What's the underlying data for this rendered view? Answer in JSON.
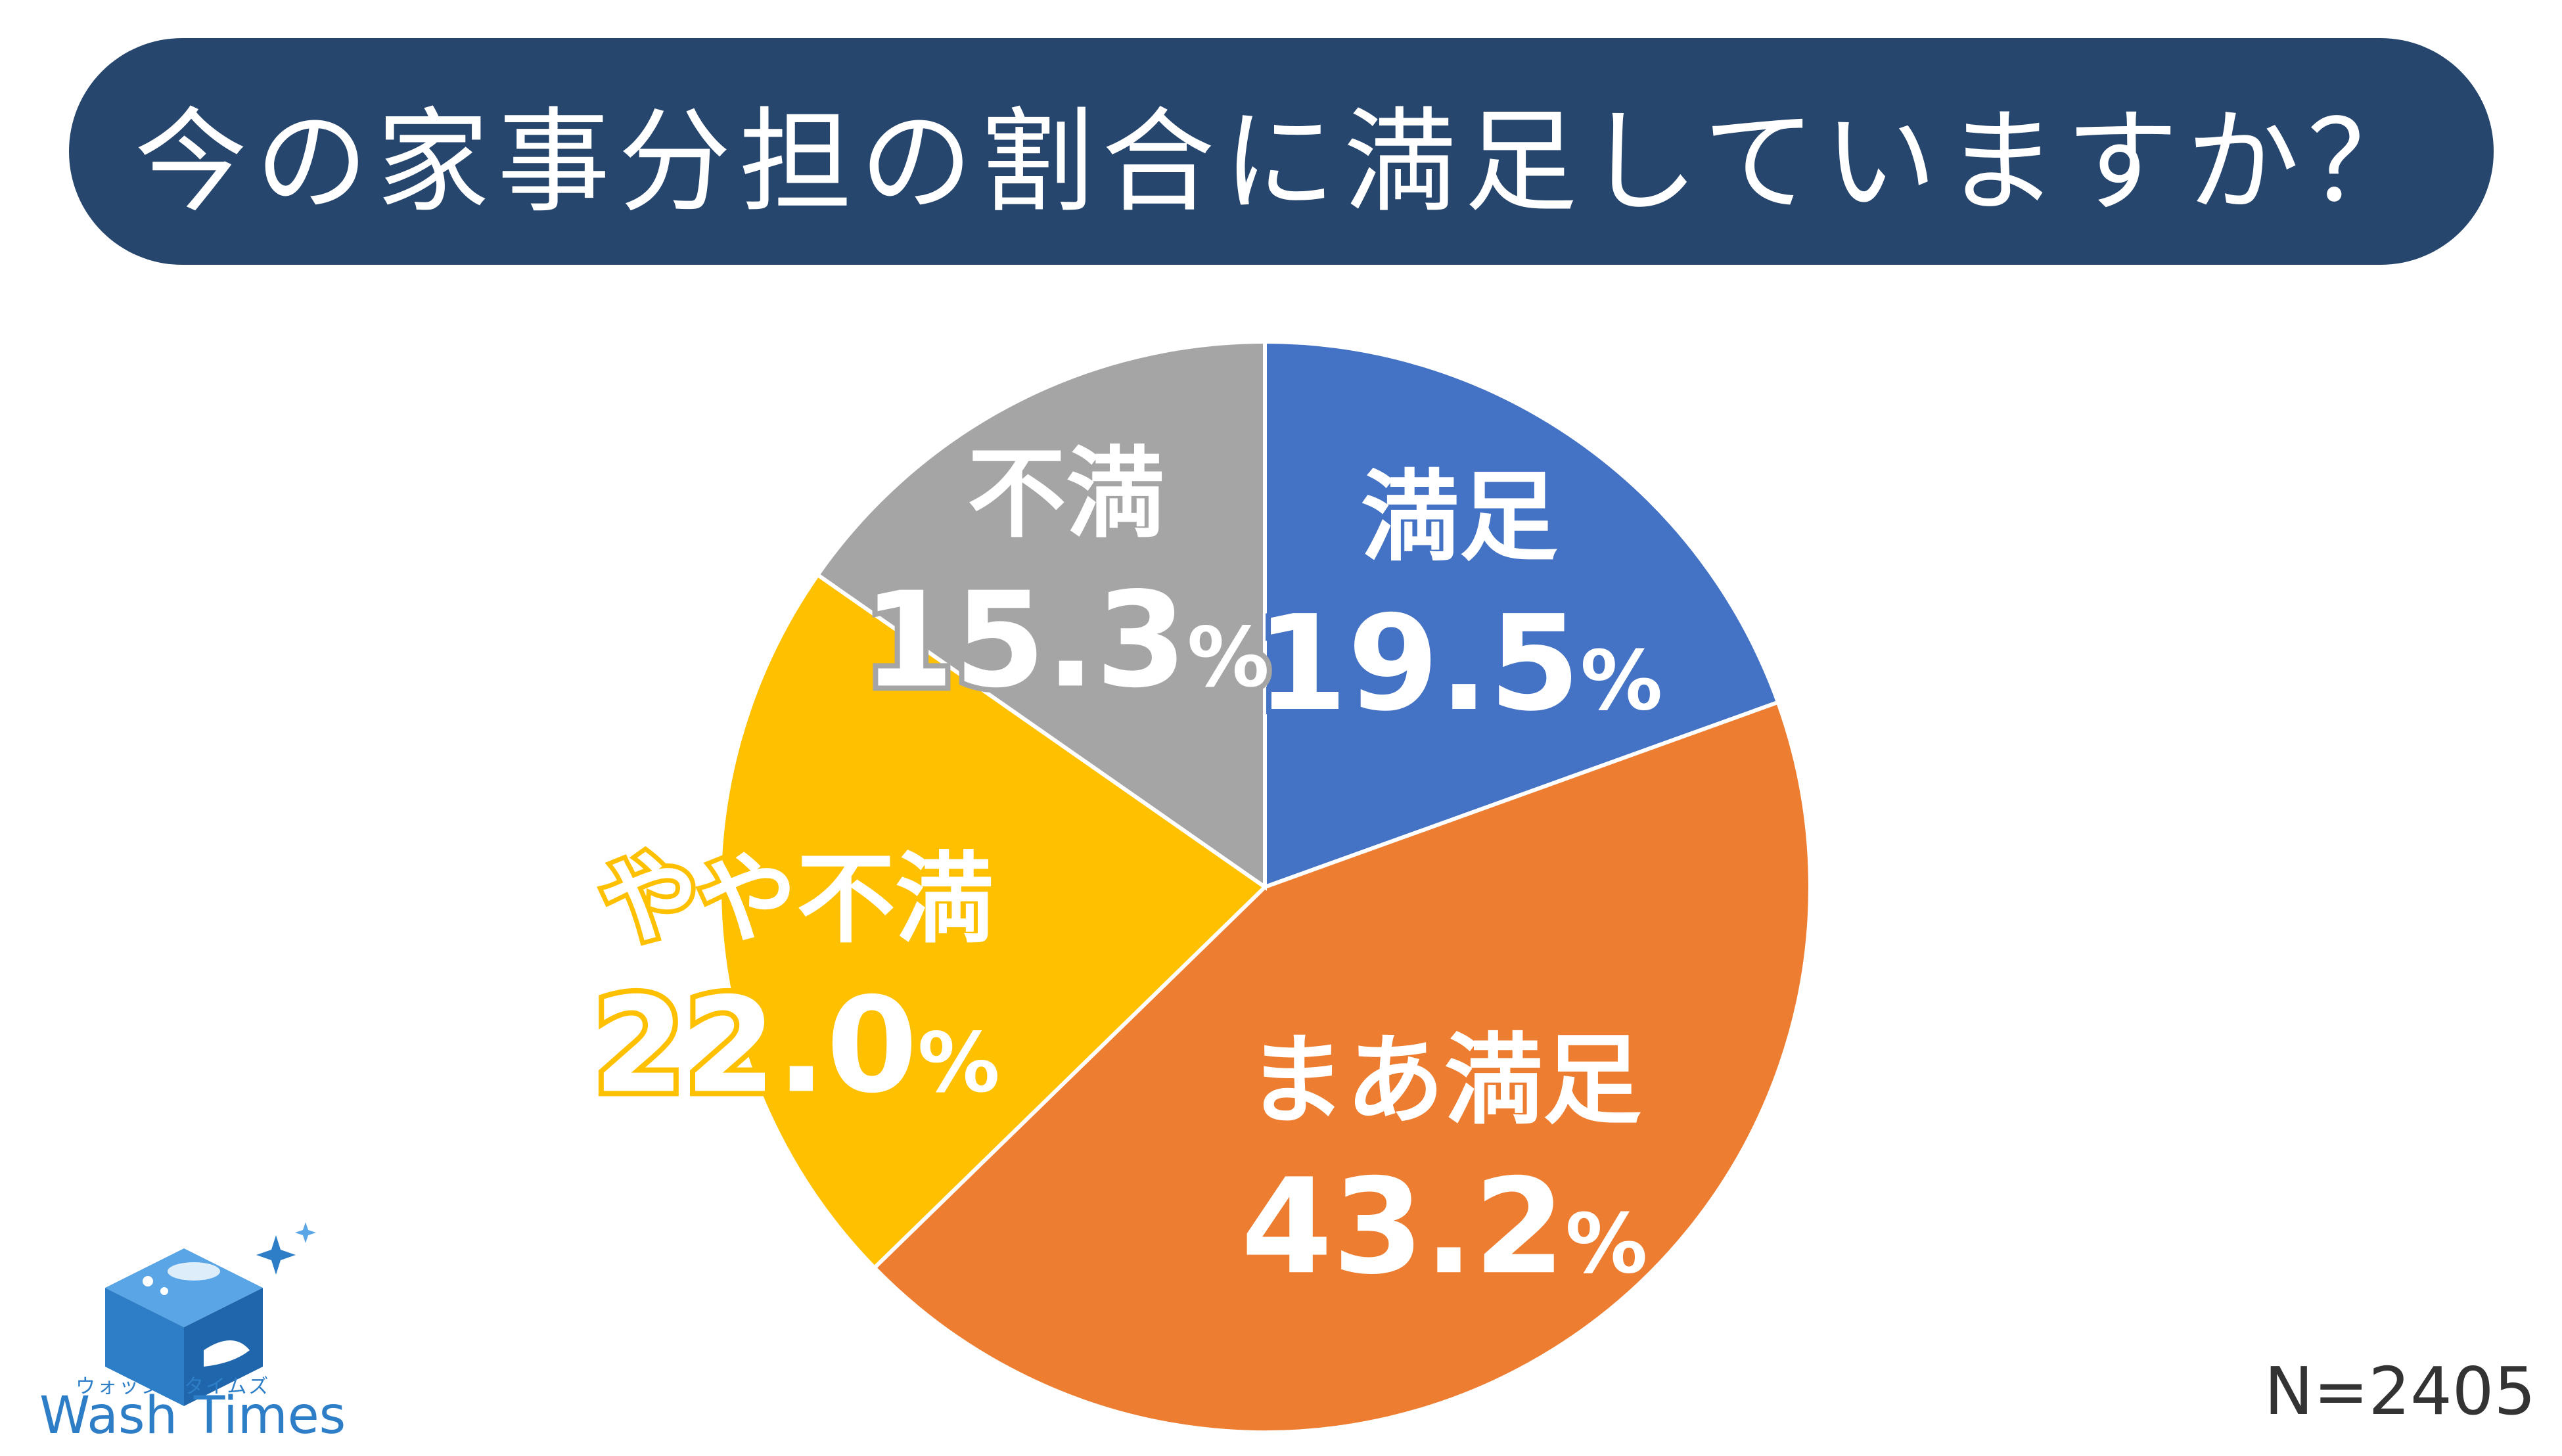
{
  "chart_data": {
    "type": "pie",
    "title": "今の家事分担の割合に満足していますか？",
    "sample_size": "N=2405",
    "unit": "%",
    "slices": [
      {
        "label": "満足",
        "value": 19.5,
        "display": "19.5",
        "color": "#4472c4",
        "text_color": "#ffffff"
      },
      {
        "label": "まあ満足",
        "value": 43.2,
        "display": "43.2",
        "color": "#ed7d31",
        "text_color": "#ffffff"
      },
      {
        "label": "やや不満",
        "value": 22.0,
        "display": "22.0",
        "color": "#ffc000",
        "text_color": "#ffffff"
      },
      {
        "label": "不満",
        "value": 15.3,
        "display": "15.3",
        "color": "#a5a5a5",
        "text_color": "#ffffff"
      }
    ]
  },
  "logo": {
    "kana": "ウォッシュタイムズ",
    "wordmark": "Wash Times",
    "color": "#2e7ec7"
  }
}
